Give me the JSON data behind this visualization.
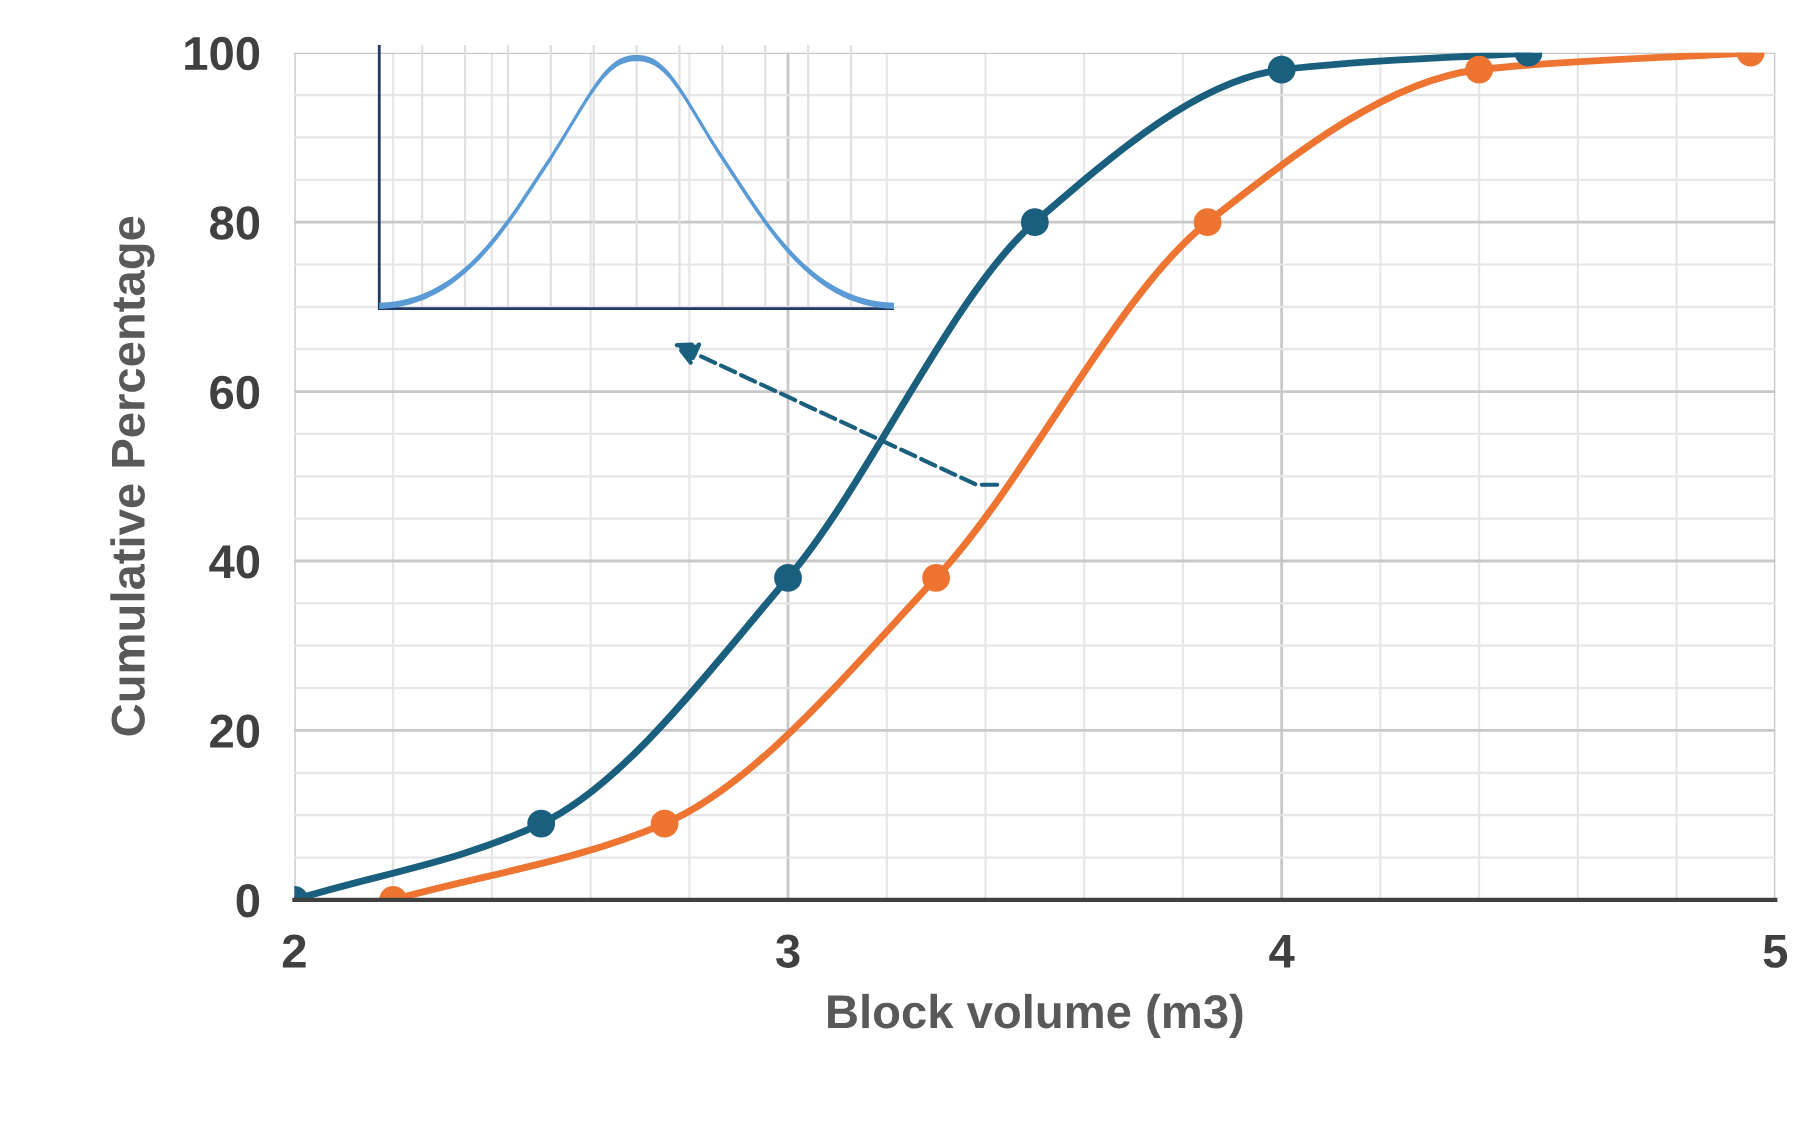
{
  "chart_data": {
    "type": "line",
    "xlabel": "Block volume (m3)",
    "ylabel": "Cumulative Percentage",
    "series": [
      {
        "color": "#1b5f7f",
        "x": [
          2,
          2.5,
          3,
          3.5,
          4,
          4.5
        ],
        "values": [
          0,
          9,
          38,
          80,
          98,
          100
        ]
      },
      {
        "color": "#ee7431",
        "x": [
          2.2,
          2.75,
          3.3,
          3.85,
          4.4,
          4.95
        ],
        "values": [
          0,
          9,
          38,
          80,
          98,
          100
        ]
      }
    ],
    "xlim": [
      2,
      5
    ],
    "xticks": [
      2,
      3,
      4,
      5
    ],
    "ylim": [
      0,
      100
    ],
    "yticks": [
      0,
      20,
      40,
      60,
      80,
      100
    ],
    "grid": true,
    "marker": "circle",
    "line_style": "solid",
    "legend": false
  }
}
